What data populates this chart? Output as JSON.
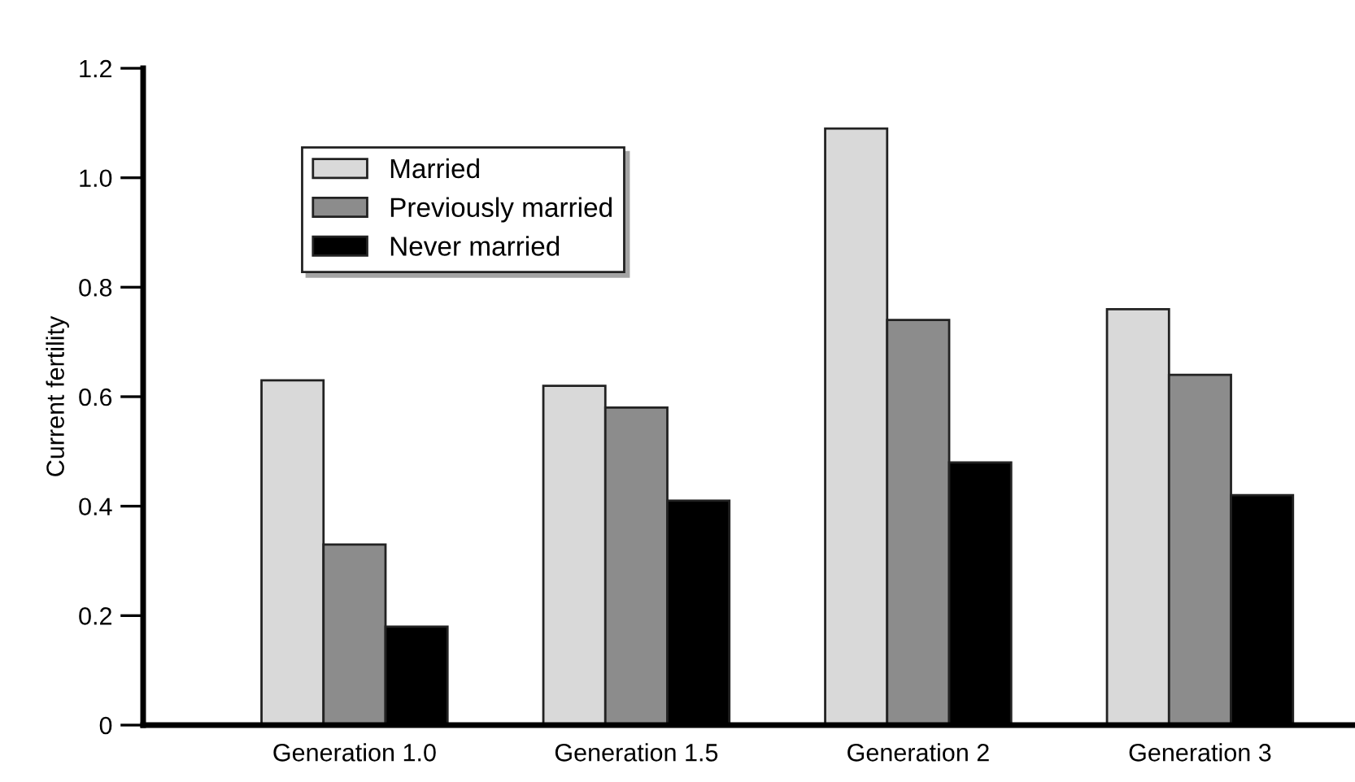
{
  "chart_data": {
    "type": "bar",
    "ylabel": "Current fertility",
    "categories": [
      "Generation 1.0",
      "Generation 1.5",
      "Generation 2",
      "Generation 3"
    ],
    "series": [
      {
        "name": "Married",
        "color": "#d9d9d9",
        "values": [
          0.63,
          0.62,
          1.09,
          0.76
        ]
      },
      {
        "name": "Previously married",
        "color": "#8c8c8c",
        "values": [
          0.33,
          0.58,
          0.74,
          0.64
        ]
      },
      {
        "name": "Never married",
        "color": "#000000",
        "values": [
          0.18,
          0.41,
          0.48,
          0.42
        ]
      }
    ],
    "ylim": [
      0,
      1.2
    ],
    "yticks": [
      0,
      0.2,
      0.4,
      0.6,
      0.8,
      {
        "value": 1.0,
        "label": "1.0"
      },
      1.2
    ],
    "grid": false,
    "legend": "top left"
  }
}
